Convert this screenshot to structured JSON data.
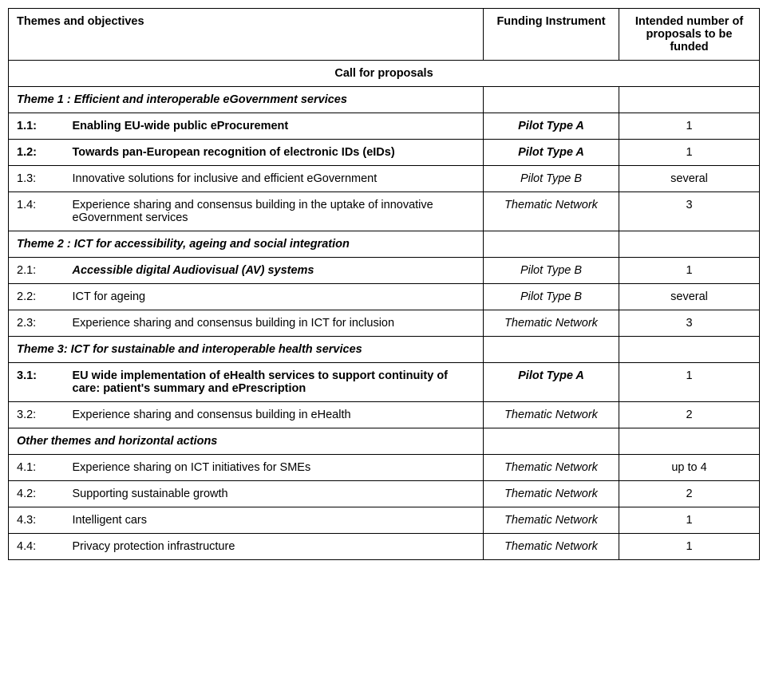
{
  "header": {
    "col1": "Themes and objectives",
    "col2": "Funding Instrument",
    "col3": "Intended number of proposals to be funded"
  },
  "callBanner": "Call for proposals",
  "sections": [
    {
      "title": "Theme 1 : Efficient and interoperable eGovernment services",
      "rows": [
        {
          "id": "1.1:",
          "label": "Enabling EU-wide public eProcurement",
          "funding": "Pilot Type A",
          "count": "1",
          "idBold": true,
          "labelBold": true,
          "fundingBold": true
        },
        {
          "id": "1.2:",
          "label": "Towards pan-European recognition of electronic IDs (eIDs)",
          "funding": "Pilot Type A",
          "count": "1",
          "idBold": true,
          "labelBold": true,
          "fundingBold": true
        },
        {
          "id": "1.3:",
          "label": "Innovative solutions for inclusive and efficient eGovernment",
          "funding": "Pilot Type B",
          "count": "several",
          "idBold": false,
          "labelBold": false,
          "fundingBold": false
        },
        {
          "id": "1.4:",
          "label": "Experience sharing and consensus building in the uptake of innovative eGovernment services",
          "funding": "Thematic Network",
          "count": "3",
          "idBold": false,
          "labelBold": false,
          "fundingBold": false
        }
      ]
    },
    {
      "title": "Theme 2 : ICT for accessibility, ageing and social integration",
      "rows": [
        {
          "id": "2.1:",
          "label": "Accessible digital Audiovisual (AV) systems",
          "funding": "Pilot Type B",
          "count": "1",
          "idBold": false,
          "labelBold": true,
          "labelItalic": true,
          "fundingBold": false
        },
        {
          "id": "2.2:",
          "label": "ICT for ageing",
          "funding": "Pilot Type B",
          "count": "several",
          "idBold": false,
          "labelBold": false,
          "fundingBold": false
        },
        {
          "id": "2.3:",
          "label": "Experience sharing and consensus building in ICT for inclusion",
          "funding": "Thematic Network",
          "count": "3",
          "idBold": false,
          "labelBold": false,
          "fundingBold": false
        }
      ]
    },
    {
      "title": "Theme 3: ICT for sustainable and interoperable health services",
      "rows": [
        {
          "id": "3.1:",
          "label": "EU wide implementation of eHealth services to support continuity of care: patient's summary and ePrescription",
          "funding": "Pilot Type A",
          "count": "1",
          "idBold": true,
          "labelBold": true,
          "fundingBold": true
        },
        {
          "id": "3.2:",
          "label": "Experience sharing and consensus building in eHealth",
          "funding": "Thematic Network",
          "count": "2",
          "idBold": false,
          "labelBold": false,
          "fundingBold": false
        }
      ]
    },
    {
      "title": "Other themes and horizontal actions",
      "rows": [
        {
          "id": "4.1:",
          "label": "Experience sharing on ICT initiatives for SMEs",
          "funding": "Thematic Network",
          "count": "up to 4",
          "idBold": false,
          "labelBold": false,
          "fundingBold": false
        },
        {
          "id": "4.2:",
          "label": "Supporting sustainable growth",
          "funding": "Thematic Network",
          "count": "2",
          "idBold": false,
          "labelBold": false,
          "fundingBold": false
        },
        {
          "id": "4.3:",
          "label": "Intelligent cars",
          "funding": "Thematic Network",
          "count": "1",
          "idBold": false,
          "labelBold": false,
          "fundingBold": false
        },
        {
          "id": "4.4:",
          "label": "Privacy protection infrastructure",
          "funding": "Thematic Network",
          "count": "1",
          "idBold": false,
          "labelBold": false,
          "fundingBold": false
        }
      ]
    }
  ]
}
